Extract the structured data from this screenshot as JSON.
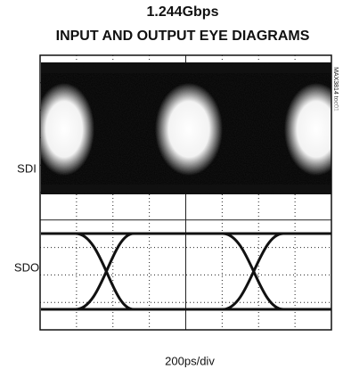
{
  "chart_data": {
    "type": "eye-diagram",
    "title": "1.244Gbps",
    "subtitle": "INPUT AND OUTPUT EYE DIAGRAMS",
    "trace_labels": [
      "SDI",
      "SDO"
    ],
    "x_label": "200ps/div",
    "figure_id": "MAX3814 toc01",
    "grid": true
  }
}
